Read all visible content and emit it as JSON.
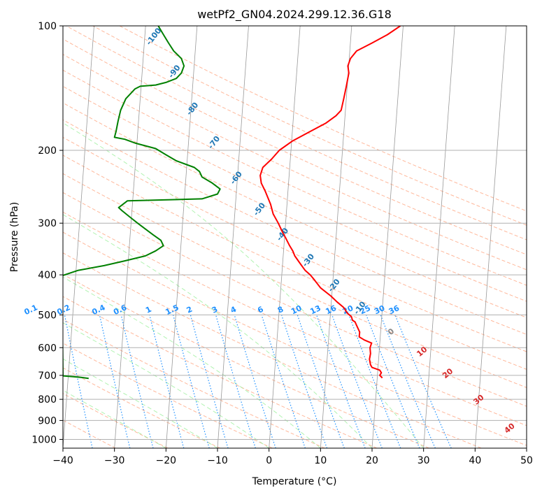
{
  "chart_data": {
    "type": "line",
    "title": "wetPf2_GN04.2024.299.12.36.G18",
    "xlabel": "Temperature (°C)",
    "ylabel": "Pressure (hPa)",
    "xlim": [
      -40,
      50
    ],
    "ylim": [
      1050,
      100
    ],
    "y_scale": "log",
    "grid": true,
    "x_ticks": [
      "−40",
      "−30",
      "−20",
      "−10",
      "0",
      "10",
      "20",
      "30",
      "40",
      "50"
    ],
    "y_ticks": [
      100,
      200,
      300,
      400,
      500,
      600,
      700,
      800,
      900,
      1000
    ],
    "series": [
      {
        "color": "#ff0000",
        "points": [
          [
            22.0,
            710
          ],
          [
            21.5,
            700
          ],
          [
            21.8,
            690
          ],
          [
            21.5,
            680
          ],
          [
            20.0,
            670
          ],
          [
            19.7,
            660
          ],
          [
            19.5,
            640
          ],
          [
            19.7,
            620
          ],
          [
            19.6,
            600
          ],
          [
            19.9,
            585
          ],
          [
            18.5,
            575
          ],
          [
            17.5,
            565
          ],
          [
            17.6,
            550
          ],
          [
            17.3,
            540
          ],
          [
            17.0,
            530
          ],
          [
            16.7,
            520
          ],
          [
            16.2,
            515
          ],
          [
            16.0,
            505
          ],
          [
            15.2,
            495
          ],
          [
            14.5,
            480
          ],
          [
            13.2,
            465
          ],
          [
            12.0,
            450
          ],
          [
            10.0,
            430
          ],
          [
            8.7,
            410
          ],
          [
            8.0,
            400
          ],
          [
            7.0,
            390
          ],
          [
            6.0,
            375
          ],
          [
            5.0,
            360
          ],
          [
            4.6,
            350
          ],
          [
            4.0,
            340
          ],
          [
            3.2,
            325
          ],
          [
            2.6,
            315
          ],
          [
            1.8,
            300
          ],
          [
            0.8,
            285
          ],
          [
            0.3,
            270
          ],
          [
            -0.8,
            250
          ],
          [
            -1.5,
            240
          ],
          [
            -1.7,
            230
          ],
          [
            -1.2,
            220
          ],
          [
            0.5,
            210
          ],
          [
            2.0,
            200
          ],
          [
            4.5,
            190
          ],
          [
            8.0,
            180
          ],
          [
            11.0,
            172
          ],
          [
            13.0,
            165
          ],
          [
            14.0,
            160
          ],
          [
            14.5,
            150
          ],
          [
            15.0,
            140
          ],
          [
            15.5,
            130
          ],
          [
            15.3,
            125
          ],
          [
            15.8,
            120
          ],
          [
            17.0,
            115
          ],
          [
            20.0,
            110
          ],
          [
            23.0,
            105
          ],
          [
            25.5,
            100
          ]
        ]
      },
      {
        "color": "#008000",
        "points": [
          [
            -35.0,
            712
          ],
          [
            -36.5,
            708
          ],
          [
            -38.0,
            705
          ],
          [
            -40.0,
            702
          ],
          [
            -40.2,
            402
          ],
          [
            -37.0,
            390
          ],
          [
            -32.0,
            380
          ],
          [
            -28.0,
            370
          ],
          [
            -24.0,
            360
          ],
          [
            -22.0,
            350
          ],
          [
            -20.5,
            340
          ],
          [
            -21.0,
            330
          ],
          [
            -22.5,
            320
          ],
          [
            -24.0,
            310
          ],
          [
            -25.5,
            300
          ],
          [
            -27.0,
            290
          ],
          [
            -28.5,
            280
          ],
          [
            -29.2,
            275
          ],
          [
            -27.5,
            265
          ],
          [
            -13.0,
            262
          ],
          [
            -10.0,
            255
          ],
          [
            -9.5,
            248
          ],
          [
            -11.0,
            240
          ],
          [
            -13.0,
            232
          ],
          [
            -13.5,
            225
          ],
          [
            -14.5,
            220
          ],
          [
            -18.0,
            212
          ],
          [
            -20.0,
            205
          ],
          [
            -22.0,
            198
          ],
          [
            -26.0,
            192
          ],
          [
            -28.0,
            188
          ],
          [
            -30.0,
            186
          ],
          [
            -29.7,
            180
          ],
          [
            -29.3,
            170
          ],
          [
            -28.8,
            160
          ],
          [
            -27.8,
            150
          ],
          [
            -26.0,
            142
          ],
          [
            -25.0,
            140
          ],
          [
            -22.0,
            139
          ],
          [
            -20.0,
            137
          ],
          [
            -18.0,
            134
          ],
          [
            -17.0,
            130
          ],
          [
            -16.5,
            125
          ],
          [
            -17.0,
            120
          ],
          [
            -18.5,
            115
          ],
          [
            -19.5,
            110
          ],
          [
            -20.5,
            105
          ],
          [
            -21.5,
            100
          ]
        ]
      }
    ],
    "isotherm_labels": [
      "0",
      "10",
      "20",
      "30",
      "40"
    ],
    "dry_adiabat_labels": [
      "-100",
      "-90",
      "-80",
      "-70",
      "-60",
      "-50",
      "-40",
      "-30",
      "-20",
      "-10"
    ],
    "mixing_ratio_labels": [
      "0.1",
      "0.2",
      "0.4",
      "0.6",
      "1",
      "1.5",
      "2",
      "3",
      "4",
      "6",
      "8",
      "10",
      "13",
      "16",
      "20",
      "25",
      "30",
      "36"
    ],
    "colors": {
      "temperature": "#ff0000",
      "dewpoint": "#008000",
      "isotherm_labels": "#d62728",
      "zero_label": "#888888",
      "dry_adiabat_labels": "#1f77b4",
      "mixing_ratio": "#1e90ff",
      "dry_adiabats": "#ffa07a",
      "moist_adiabats": "#90ee90",
      "skewed_isotherms": "#808080",
      "grid": "#b0b0b0"
    }
  }
}
